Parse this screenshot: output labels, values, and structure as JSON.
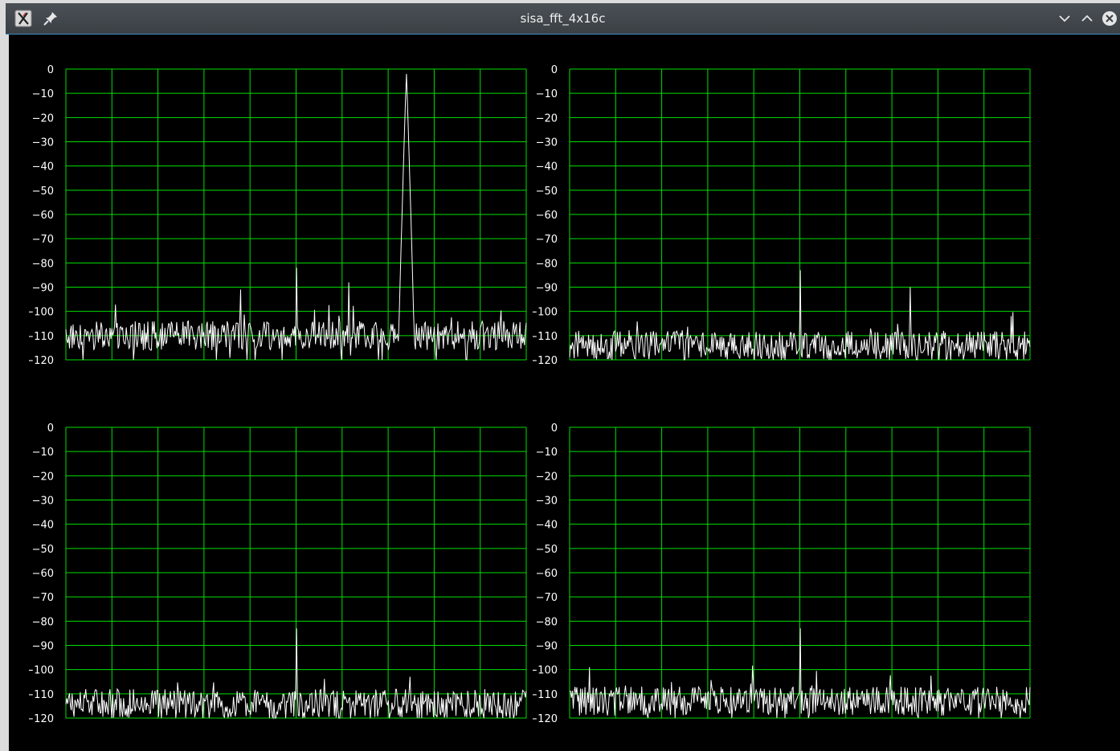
{
  "window": {
    "title": "sisa_fft_4x16c",
    "icons": {
      "app": "x-app-icon",
      "pin": "pin-icon",
      "minimize": "chevron-down-icon",
      "maximize": "chevron-up-icon",
      "close": "close-icon"
    }
  },
  "colors": {
    "grid": "#00e000",
    "trace": "#ffffff",
    "background": "#000000",
    "label": "#ffffff"
  },
  "chart_data": [
    {
      "type": "line",
      "ylim": [
        -120,
        0
      ],
      "yticks": [
        0,
        -10,
        -20,
        -30,
        -40,
        -50,
        -60,
        -70,
        -80,
        -90,
        -100,
        -110,
        -120
      ],
      "x_divisions": 10,
      "noise_floor": -110,
      "peaks": [
        {
          "x": 0.5,
          "y": -82
        },
        {
          "x": 0.615,
          "y": -88
        },
        {
          "x": 0.38,
          "y": -91
        },
        {
          "x": 0.74,
          "y": -2,
          "main": true
        }
      ]
    },
    {
      "type": "line",
      "ylim": [
        -120,
        0
      ],
      "yticks": [
        0,
        -10,
        -20,
        -30,
        -40,
        -50,
        -60,
        -70,
        -80,
        -90,
        -100,
        -110,
        -120
      ],
      "x_divisions": 10,
      "noise_floor": -114,
      "peaks": [
        {
          "x": 0.5,
          "y": -83
        },
        {
          "x": 0.74,
          "y": -90
        }
      ]
    },
    {
      "type": "line",
      "ylim": [
        -120,
        0
      ],
      "yticks": [
        0,
        -10,
        -20,
        -30,
        -40,
        -50,
        -60,
        -70,
        -80,
        -90,
        -100,
        -110,
        -120
      ],
      "x_divisions": 10,
      "noise_floor": -114,
      "peaks": [
        {
          "x": 0.5,
          "y": -83
        }
      ]
    },
    {
      "type": "line",
      "ylim": [
        -120,
        0
      ],
      "yticks": [
        0,
        -10,
        -20,
        -30,
        -40,
        -50,
        -60,
        -70,
        -80,
        -90,
        -100,
        -110,
        -120
      ],
      "x_divisions": 10,
      "noise_floor": -113,
      "peaks": [
        {
          "x": 0.5,
          "y": -83
        }
      ]
    }
  ]
}
